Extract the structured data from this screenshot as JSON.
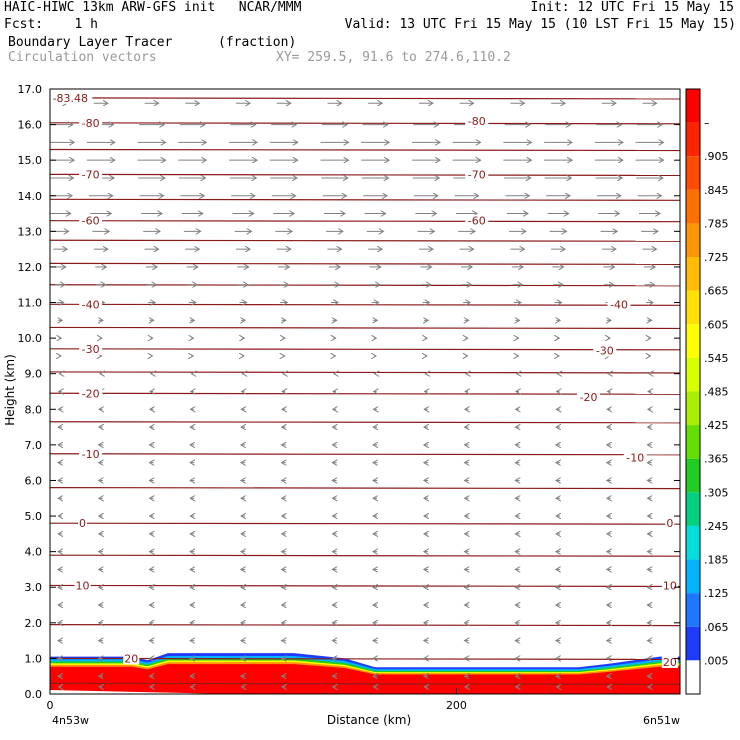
{
  "header": {
    "title_left": "HAIC-HIWC 13km ARW-GFS init   NCAR/MMM",
    "init": "Init: 12 UTC Fri 15 May 15",
    "fcst": "Fcst:    1 h",
    "valid": "Valid: 13 UTC Fri 15 May 15 (10 LST Fri 15 May 15)",
    "field": "Boundary Layer Tracer",
    "units": "(fraction)",
    "vectors": "Circulation vectors",
    "xy": "XY= 259.5, 91.6 to 274.6,110.2"
  },
  "colors": {
    "contour": "#8b1a1a",
    "vector": "#808080"
  },
  "chart_data": {
    "type": "heatmap",
    "title": "Boundary Layer Tracer",
    "xlabel": "Distance (km)",
    "ylabel": "Height (km)",
    "xlim": [
      0,
      310
    ],
    "ylim": [
      0,
      17
    ],
    "x_ticks": [
      0,
      200
    ],
    "x_tick_labels": [
      "0",
      "200"
    ],
    "x_end_labels": [
      "4n53w",
      "6n51w"
    ],
    "y_ticks": [
      0.0,
      1.0,
      2.0,
      3.0,
      4.0,
      5.0,
      6.0,
      7.0,
      8.0,
      9.0,
      10.0,
      11.0,
      12.0,
      13.0,
      14.0,
      15.0,
      16.0,
      17.0
    ],
    "y_tick_labels": [
      "0.0",
      "1.0",
      "2.0",
      "3.0",
      "4.0",
      "5.0",
      "6.0",
      "7.0",
      "8.0",
      "9.0",
      "10.0",
      "11.0",
      "12.0",
      "13.0",
      "14.0",
      "15.0",
      "16.0",
      "17.0"
    ],
    "colorbar": {
      "labels": [
        "–",
        ".905",
        ".845",
        ".785",
        ".725",
        ".665",
        ".605",
        ".545",
        ".485",
        ".425",
        ".365",
        ".305",
        ".245",
        ".185",
        ".125",
        ".065",
        ".005"
      ],
      "colors": [
        "#ff0000",
        "#ff2400",
        "#ff4a00",
        "#ff7000",
        "#ff9600",
        "#ffbc00",
        "#ffe000",
        "#ffff00",
        "#d8ff00",
        "#a8f000",
        "#66dd00",
        "#22cc22",
        "#00d080",
        "#00dede",
        "#00b4ff",
        "#1e78ff",
        "#1e3cff",
        "#ffffff"
      ]
    },
    "bl_top_km": [
      [
        0,
        1.05
      ],
      [
        40,
        1.05
      ],
      [
        48,
        0.95
      ],
      [
        58,
        1.15
      ],
      [
        120,
        1.15
      ],
      [
        145,
        1.0
      ],
      [
        160,
        0.75
      ],
      [
        200,
        0.75
      ],
      [
        260,
        0.75
      ],
      [
        275,
        0.85
      ],
      [
        300,
        1.05
      ],
      [
        310,
        1.05
      ]
    ],
    "temperature_contours": [
      {
        "label": "-83.48",
        "height_km": 16.75,
        "label_x_km": 10
      },
      {
        "label": "-80",
        "height_km": 16.05,
        "label_x_km": 20
      },
      {
        "label": "-80",
        "height_km": 16.1,
        "label_x_km": 210
      },
      {
        "label": "-70",
        "height_km": 14.6,
        "label_x_km": 20
      },
      {
        "label": "-70",
        "height_km": 14.6,
        "label_x_km": 210
      },
      {
        "label": "-60",
        "height_km": 13.3,
        "label_x_km": 20
      },
      {
        "label": "-60",
        "height_km": 13.3,
        "label_x_km": 210
      },
      {
        "label": "-40",
        "height_km": 10.95,
        "label_x_km": 20
      },
      {
        "label": "-40",
        "height_km": 10.95,
        "label_x_km": 280
      },
      {
        "label": "-30",
        "height_km": 9.7,
        "label_x_km": 20
      },
      {
        "label": "-30",
        "height_km": 9.65,
        "label_x_km": 273
      },
      {
        "label": "-20",
        "height_km": 8.45,
        "label_x_km": 20
      },
      {
        "label": "-20",
        "height_km": 8.35,
        "label_x_km": 265
      },
      {
        "label": "-10",
        "height_km": 6.75,
        "label_x_km": 20
      },
      {
        "label": "-10",
        "height_km": 6.65,
        "label_x_km": 288
      },
      {
        "label": "0",
        "height_km": 4.8,
        "label_x_km": 16
      },
      {
        "label": "0",
        "height_km": 4.8,
        "label_x_km": 305
      },
      {
        "label": "10",
        "height_km": 3.05,
        "label_x_km": 16
      },
      {
        "label": "10",
        "height_km": 3.05,
        "label_x_km": 305
      },
      {
        "label": "20",
        "height_km": 1.0,
        "label_x_km": 40
      },
      {
        "label": "20",
        "height_km": 0.9,
        "label_x_km": 305
      }
    ],
    "contour_levels_km": [
      16.75,
      16.05,
      15.3,
      14.6,
      13.9,
      13.3,
      12.75,
      12.1,
      11.5,
      10.95,
      10.3,
      9.7,
      9.05,
      8.45,
      7.65,
      6.75,
      5.8,
      4.8,
      3.9,
      3.05,
      1.95,
      1.0,
      0.3
    ],
    "vectors": {
      "x_km": [
        5,
        25,
        50,
        70,
        95,
        115,
        140,
        160,
        185,
        205,
        230,
        250,
        275,
        295
      ],
      "rows": [
        {
          "height_km": 16.6,
          "u": 0.5
        },
        {
          "height_km": 16.0,
          "u": 0.9
        },
        {
          "height_km": 15.5,
          "u": 1.0
        },
        {
          "height_km": 15.0,
          "u": 1.0
        },
        {
          "height_km": 14.5,
          "u": 0.95
        },
        {
          "height_km": 14.0,
          "u": 0.85
        },
        {
          "height_km": 13.5,
          "u": 0.75
        },
        {
          "height_km": 13.0,
          "u": 0.6
        },
        {
          "height_km": 12.5,
          "u": 0.5
        },
        {
          "height_km": 12.0,
          "u": 0.4
        },
        {
          "height_km": 11.5,
          "u": 0.35
        },
        {
          "height_km": 11.0,
          "u": 0.25
        },
        {
          "height_km": 10.5,
          "u": 0.15
        },
        {
          "height_km": 10.0,
          "u": 0.08
        },
        {
          "height_km": 9.5,
          "u": 0.06
        },
        {
          "height_km": 9.0,
          "u": -0.05
        },
        {
          "height_km": 8.5,
          "u": -0.1
        },
        {
          "height_km": 8.0,
          "u": -0.12
        },
        {
          "height_km": 7.5,
          "u": -0.14
        },
        {
          "height_km": 7.0,
          "u": -0.15
        },
        {
          "height_km": 6.5,
          "u": -0.15
        },
        {
          "height_km": 6.0,
          "u": -0.15
        },
        {
          "height_km": 5.5,
          "u": -0.14
        },
        {
          "height_km": 5.0,
          "u": -0.14
        },
        {
          "height_km": 4.5,
          "u": -0.14
        },
        {
          "height_km": 4.0,
          "u": -0.15
        },
        {
          "height_km": 3.5,
          "u": -0.15
        },
        {
          "height_km": 3.0,
          "u": -0.15
        },
        {
          "height_km": 2.5,
          "u": -0.15
        },
        {
          "height_km": 2.0,
          "u": -0.15
        },
        {
          "height_km": 1.5,
          "u": -0.15
        },
        {
          "height_km": 1.0,
          "u": -0.15
        },
        {
          "height_km": 0.5,
          "u": -0.15
        },
        {
          "height_km": 0.2,
          "u": -0.12
        }
      ]
    }
  }
}
